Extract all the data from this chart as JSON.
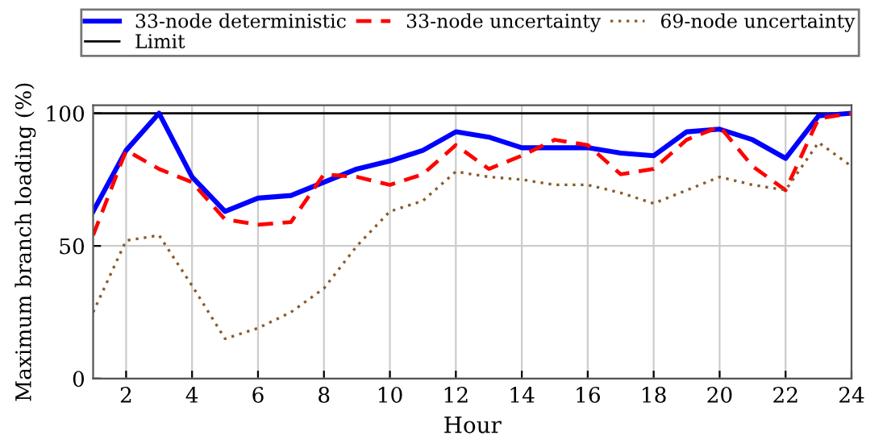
{
  "chart_data": {
    "type": "line",
    "xlabel": "Hour",
    "ylabel": "Maximum branch loading (%)",
    "x": [
      1,
      2,
      3,
      4,
      5,
      6,
      7,
      8,
      9,
      10,
      11,
      12,
      13,
      14,
      15,
      16,
      17,
      18,
      19,
      20,
      21,
      22,
      23,
      24
    ],
    "series": [
      {
        "name": "33-node deterministic",
        "color": "#0000ff",
        "line_style": "solid",
        "values": [
          63,
          86,
          100,
          76,
          63,
          68,
          69,
          74,
          79,
          82,
          86,
          93,
          91,
          87,
          87,
          87,
          85,
          84,
          93,
          94,
          90,
          83,
          99,
          100
        ]
      },
      {
        "name": "33-node uncertainty",
        "color": "#ff0000",
        "line_style": "dashed",
        "values": [
          54,
          86,
          79,
          74,
          60,
          58,
          59,
          77,
          76,
          73,
          77,
          88,
          79,
          84,
          90,
          88,
          77,
          79,
          90,
          95,
          80,
          71,
          98,
          100
        ]
      },
      {
        "name": "69-node uncertainty",
        "color": "#8b5a2b",
        "line_style": "dotted",
        "values": [
          25,
          52,
          54,
          35,
          15,
          19,
          25,
          34,
          50,
          63,
          67,
          78,
          76,
          75,
          73,
          73,
          70,
          66,
          71,
          76,
          73,
          71,
          89,
          80
        ]
      }
    ],
    "ref_lines": [
      {
        "axis": "y",
        "value": 100,
        "label": "Limit",
        "color": "#000000",
        "line_style": "solid"
      }
    ],
    "xlim": [
      1,
      24
    ],
    "xticks": [
      2,
      4,
      6,
      8,
      10,
      12,
      14,
      16,
      18,
      20,
      22,
      24
    ],
    "ylim": [
      0,
      103
    ],
    "yticks": [
      0,
      50,
      100
    ],
    "grid": true,
    "legend": "top",
    "marker": "none"
  }
}
